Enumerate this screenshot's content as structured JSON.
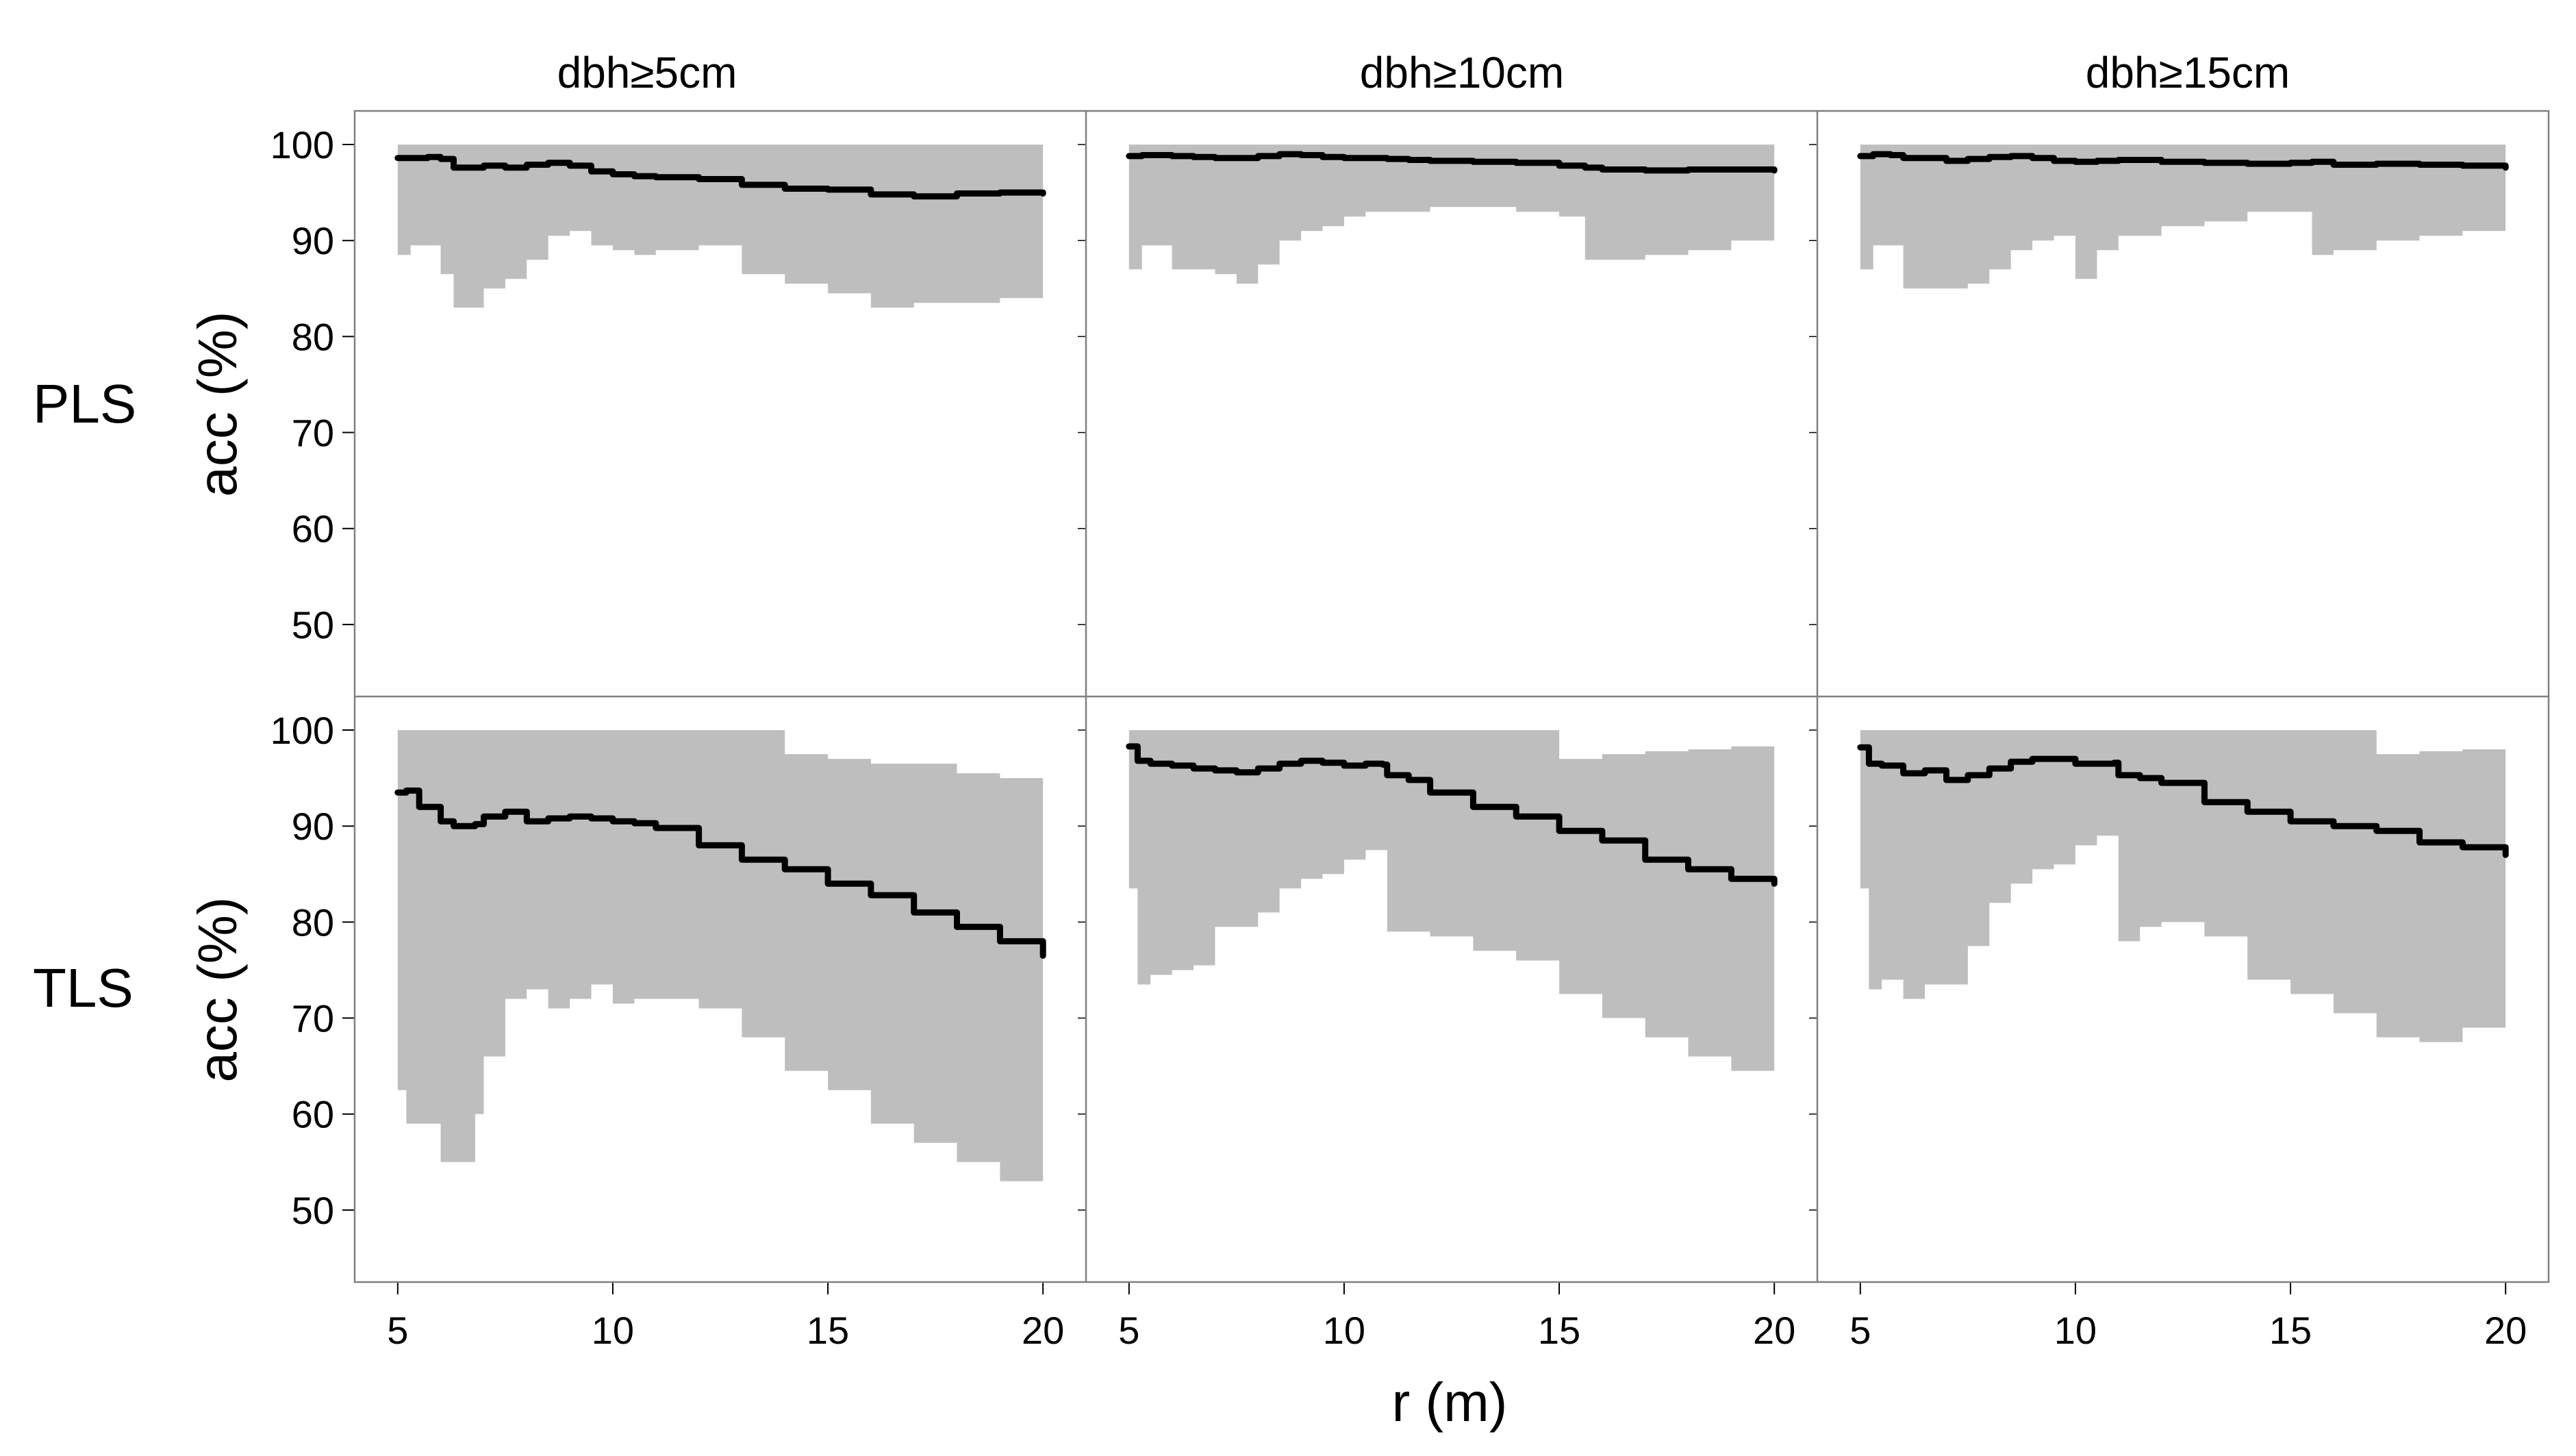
{
  "figure": {
    "type": "small-multiples",
    "xlabel": "r (m)",
    "ylabel": "acc (%)",
    "column_titles": [
      "dbh≥5cm",
      "dbh≥10cm",
      "dbh≥15cm"
    ],
    "row_labels": [
      "PLS",
      "TLS"
    ],
    "xlim": [
      4.0,
      21.0
    ],
    "ylim": [
      42.5,
      103.5
    ],
    "xticks": [
      "5",
      "10",
      "15",
      "20"
    ],
    "yticks": [
      "50",
      "60",
      "70",
      "80",
      "90",
      "100"
    ],
    "colors": {
      "band": "#bebebe",
      "line": "#000000",
      "frame": "#808080"
    }
  },
  "chart_data": [
    {
      "type": "area",
      "panel": "PLS dbh≥5cm",
      "row": 0,
      "col": 0,
      "x": [
        5,
        5.3,
        5.7,
        6.0,
        6.3,
        6.7,
        7.0,
        7.5,
        8.0,
        8.5,
        9.0,
        9.5,
        10.0,
        10.5,
        11.0,
        12.0,
        13.0,
        14.0,
        15.0,
        16.0,
        17.0,
        18.0,
        19.0,
        20.0
      ],
      "mean": [
        98.6,
        98.6,
        98.7,
        98.5,
        97.6,
        97.6,
        97.8,
        97.6,
        97.9,
        98.1,
        97.8,
        97.2,
        96.9,
        96.7,
        96.6,
        96.4,
        95.8,
        95.4,
        95.3,
        94.8,
        94.6,
        94.9,
        95.0,
        94.9
      ],
      "upper": [
        100,
        100,
        100,
        100,
        100,
        100,
        100,
        100,
        100,
        100,
        100,
        100,
        100,
        100,
        100,
        100,
        100,
        100,
        100,
        100,
        100,
        100,
        100,
        100
      ],
      "lower": [
        88.5,
        89.5,
        89.5,
        86.5,
        83.0,
        83.0,
        85.0,
        86.0,
        88.0,
        90.5,
        91.0,
        89.5,
        89.0,
        88.5,
        89.0,
        89.5,
        86.5,
        85.5,
        84.5,
        83.0,
        83.5,
        83.5,
        84.0,
        84.5
      ]
    },
    {
      "type": "area",
      "panel": "PLS dbh≥10cm",
      "row": 0,
      "col": 1,
      "x": [
        5,
        5.3,
        5.7,
        6.0,
        6.5,
        7.0,
        7.5,
        8.0,
        8.5,
        9.0,
        9.5,
        10.0,
        10.5,
        11.0,
        11.5,
        12.0,
        13.0,
        14.0,
        15.0,
        15.6,
        16.0,
        17.0,
        18.0,
        19.0,
        20.0
      ],
      "mean": [
        98.8,
        98.9,
        98.9,
        98.8,
        98.7,
        98.6,
        98.6,
        98.8,
        99.0,
        98.9,
        98.7,
        98.6,
        98.6,
        98.5,
        98.4,
        98.3,
        98.2,
        98.1,
        97.8,
        97.6,
        97.4,
        97.3,
        97.4,
        97.4,
        97.3
      ],
      "upper": [
        100,
        100,
        100,
        100,
        100,
        100,
        100,
        100,
        100,
        100,
        100,
        100,
        100,
        100,
        100,
        100,
        100,
        100,
        100,
        100,
        100,
        100,
        100,
        100,
        100
      ],
      "lower": [
        87.0,
        89.5,
        89.5,
        87.0,
        87.0,
        86.5,
        85.5,
        87.5,
        90.0,
        91.0,
        91.5,
        92.5,
        93.0,
        93.0,
        93.0,
        93.5,
        93.5,
        93.0,
        92.5,
        88.0,
        88.0,
        88.5,
        89.0,
        90.0,
        90.0
      ]
    },
    {
      "type": "area",
      "panel": "PLS dbh≥15cm",
      "row": 0,
      "col": 2,
      "x": [
        5,
        5.3,
        5.7,
        6.0,
        6.5,
        7.0,
        7.5,
        8.0,
        8.5,
        9.0,
        9.5,
        10.0,
        10.5,
        11.0,
        12.0,
        13.0,
        14.0,
        15.0,
        15.5,
        16.0,
        17.0,
        18.0,
        19.0,
        20.0
      ],
      "mean": [
        98.8,
        99.0,
        98.9,
        98.6,
        98.6,
        98.3,
        98.5,
        98.7,
        98.8,
        98.6,
        98.3,
        98.2,
        98.3,
        98.4,
        98.2,
        98.1,
        98.0,
        98.1,
        98.2,
        97.9,
        98.0,
        97.9,
        97.8,
        97.6
      ],
      "upper": [
        100,
        100,
        100,
        100,
        100,
        100,
        100,
        100,
        100,
        100,
        100,
        100,
        100,
        100,
        100,
        100,
        100,
        100,
        100,
        100,
        100,
        100,
        100,
        100
      ],
      "lower": [
        87.0,
        89.5,
        89.5,
        85.0,
        85.0,
        85.0,
        85.5,
        87.0,
        89.0,
        90.0,
        90.5,
        86.0,
        89.0,
        90.5,
        91.5,
        92.0,
        93.0,
        93.0,
        88.5,
        89.0,
        90.0,
        90.5,
        91.0,
        90.5
      ]
    },
    {
      "type": "area",
      "panel": "TLS dbh≥5cm",
      "row": 1,
      "col": 0,
      "x": [
        5,
        5.2,
        5.5,
        6.0,
        6.3,
        6.5,
        6.8,
        7.0,
        7.5,
        8.0,
        8.5,
        9.0,
        9.5,
        10.0,
        10.5,
        11.0,
        12.0,
        13.0,
        14.0,
        15.0,
        16.0,
        17.0,
        18.0,
        19.0,
        20.0
      ],
      "mean": [
        93.5,
        93.7,
        92.0,
        90.5,
        90.0,
        90.0,
        90.2,
        91.0,
        91.5,
        90.5,
        90.8,
        91.0,
        90.8,
        90.5,
        90.3,
        89.8,
        88.0,
        86.5,
        85.5,
        84.0,
        82.8,
        81.0,
        79.5,
        78.0,
        76.5
      ],
      "upper": [
        100,
        100,
        100,
        100,
        100,
        100,
        100,
        100,
        100,
        100,
        100,
        100,
        100,
        100,
        100,
        100,
        100,
        100,
        97.5,
        97.0,
        96.5,
        96.5,
        95.5,
        95.0,
        95.0
      ],
      "lower": [
        62.5,
        59.0,
        59.0,
        55.0,
        55.0,
        55.0,
        60.0,
        66.0,
        72.0,
        73.0,
        71.0,
        72.0,
        73.5,
        71.5,
        72.0,
        72.0,
        71.0,
        68.0,
        64.5,
        62.5,
        59.0,
        57.0,
        55.0,
        53.0,
        51.0
      ]
    },
    {
      "type": "area",
      "panel": "TLS dbh≥10cm",
      "row": 1,
      "col": 1,
      "x": [
        5,
        5.2,
        5.5,
        6.0,
        6.5,
        7.0,
        7.5,
        8.0,
        8.5,
        9.0,
        9.5,
        10.0,
        10.5,
        10.9,
        11.0,
        11.5,
        12.0,
        13.0,
        14.0,
        15.0,
        16.0,
        17.0,
        18.0,
        19.0,
        20.0
      ],
      "mean": [
        98.3,
        96.8,
        96.5,
        96.3,
        96.0,
        95.8,
        95.6,
        96.0,
        96.5,
        96.8,
        96.6,
        96.3,
        96.5,
        96.4,
        95.3,
        94.8,
        93.5,
        92.0,
        91.0,
        89.5,
        88.5,
        86.5,
        85.5,
        84.5,
        84.0
      ],
      "upper": [
        100,
        100,
        100,
        100,
        100,
        100,
        100,
        100,
        100,
        100,
        100,
        100,
        100,
        100,
        100,
        100,
        100,
        100,
        100,
        97.0,
        97.5,
        97.8,
        98.0,
        98.3,
        98.3
      ],
      "lower": [
        83.5,
        73.5,
        74.5,
        75.0,
        75.5,
        79.5,
        79.5,
        81.0,
        83.5,
        84.5,
        85.0,
        86.5,
        87.5,
        87.5,
        79.0,
        79.0,
        78.5,
        77.0,
        76.0,
        72.5,
        70.0,
        68.0,
        66.0,
        64.5,
        63.0
      ]
    },
    {
      "type": "area",
      "panel": "TLS dbh≥15cm",
      "row": 1,
      "col": 2,
      "x": [
        5,
        5.2,
        5.5,
        6.0,
        6.5,
        7.0,
        7.5,
        8.0,
        8.5,
        9.0,
        9.5,
        10.0,
        10.5,
        10.9,
        11.0,
        11.5,
        12.0,
        13.0,
        14.0,
        15.0,
        16.0,
        17.0,
        18.0,
        19.0,
        20.0
      ],
      "mean": [
        98.2,
        96.5,
        96.3,
        95.5,
        95.8,
        94.8,
        95.3,
        96.0,
        96.7,
        97.0,
        97.0,
        96.5,
        96.5,
        96.6,
        95.3,
        95.0,
        94.5,
        92.5,
        91.5,
        90.5,
        90.0,
        89.5,
        88.3,
        87.8,
        87.0
      ],
      "upper": [
        100,
        100,
        100,
        100,
        100,
        100,
        100,
        100,
        100,
        100,
        100,
        100,
        100,
        100,
        100,
        100,
        100,
        100,
        100,
        100,
        100,
        97.5,
        97.8,
        98.0,
        98.0
      ],
      "lower": [
        83.5,
        73.0,
        74.0,
        72.0,
        73.5,
        73.5,
        77.5,
        82.0,
        84.0,
        85.5,
        86.0,
        88.0,
        89.0,
        89.0,
        78.0,
        79.5,
        80.0,
        78.5,
        74.0,
        72.5,
        70.5,
        68.0,
        67.5,
        69.0,
        67.5
      ]
    }
  ]
}
